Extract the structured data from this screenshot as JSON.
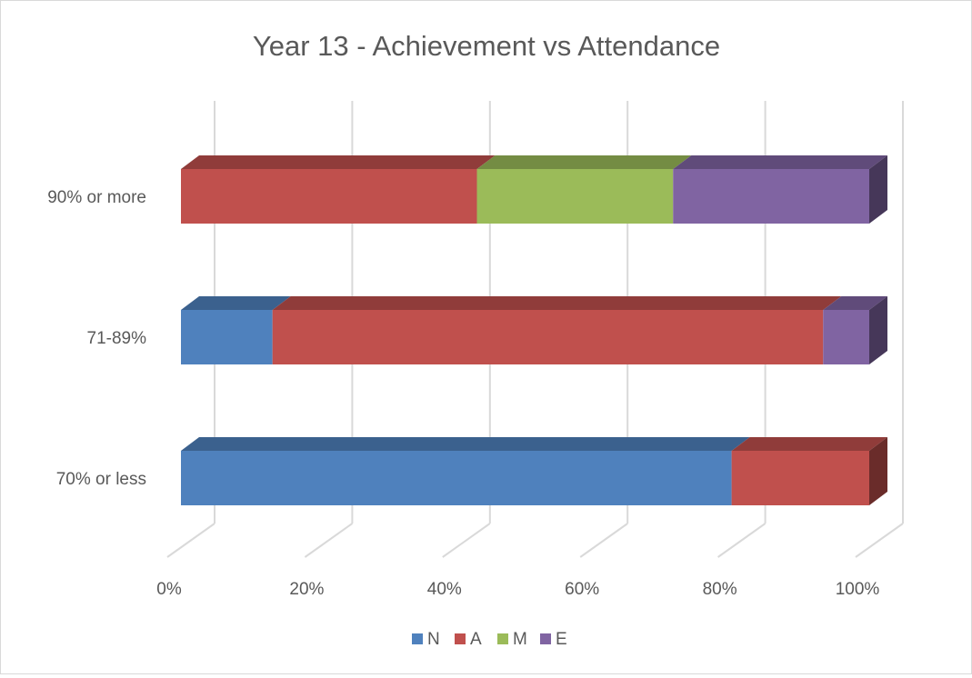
{
  "chart_data": {
    "type": "bar",
    "orientation": "horizontal",
    "stacked": "percent",
    "three_d": true,
    "title": "Year 13 - Achievement vs Attendance",
    "categories": [
      "70% or less",
      "71-89%",
      "90% or more"
    ],
    "series": [
      {
        "name": "N",
        "color": "#4F81BD",
        "values": [
          80,
          13.3,
          0
        ]
      },
      {
        "name": "A",
        "color": "#C0504D",
        "values": [
          20,
          80,
          43
        ]
      },
      {
        "name": "M",
        "color": "#9BBB59",
        "values": [
          0,
          0,
          28.5
        ]
      },
      {
        "name": "E",
        "color": "#8064A2",
        "values": [
          0,
          6.7,
          28.5
        ]
      }
    ],
    "x_ticks": [
      "0%",
      "20%",
      "40%",
      "60%",
      "80%",
      "100%"
    ],
    "xlim": [
      0,
      100
    ],
    "grid": true,
    "legend_position": "bottom"
  }
}
